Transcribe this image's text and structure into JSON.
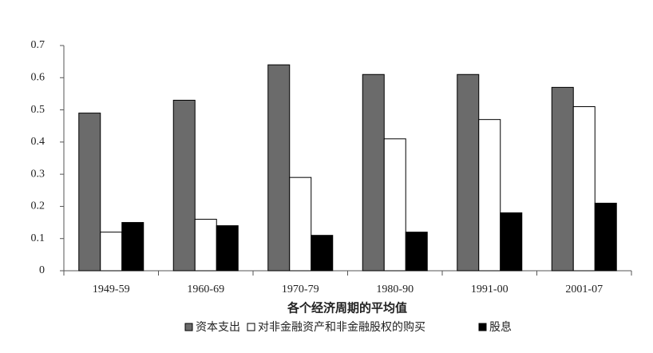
{
  "chart_data": {
    "type": "bar",
    "x_label": "各个经济周期的平均值",
    "categories": [
      "1949-59",
      "1960-69",
      "1970-79",
      "1980-90",
      "1991-00",
      "2001-07"
    ],
    "series": [
      {
        "name": "资本支出",
        "color": "#6b6b6b",
        "values": [
          0.49,
          0.53,
          0.64,
          0.61,
          0.61,
          0.57
        ]
      },
      {
        "name": "对非金融资产和非金融股权的购买",
        "color": "#ffffff",
        "values": [
          0.12,
          0.16,
          0.29,
          0.41,
          0.47,
          0.51
        ]
      },
      {
        "name": "股息",
        "color": "#000000",
        "values": [
          0.15,
          0.14,
          0.11,
          0.12,
          0.18,
          0.21
        ]
      }
    ],
    "ylim": [
      0,
      0.7
    ],
    "yticks": [
      0,
      0.1,
      0.2,
      0.3,
      0.4,
      0.5,
      0.6,
      0.7
    ],
    "grid": false
  }
}
